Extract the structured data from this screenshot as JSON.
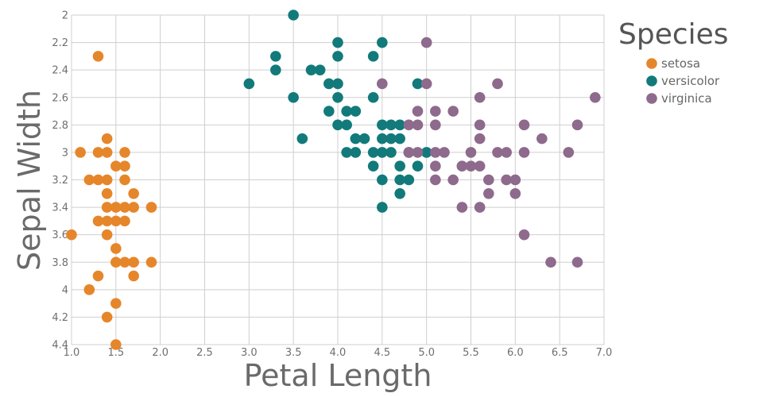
{
  "chart_data": {
    "type": "scatter",
    "xlabel": "Petal Length",
    "ylabel": "Sepal Width",
    "xlim": [
      1.0,
      7.0
    ],
    "ylim": [
      2.0,
      4.4
    ],
    "y_inverted": true,
    "grid": true,
    "x_ticks": [
      "1.0",
      "1.5",
      "2.0",
      "2.5",
      "3.0",
      "3.5",
      "4.0",
      "4.5",
      "5.0",
      "5.5",
      "6.0",
      "6.5",
      "7.0"
    ],
    "y_ticks": [
      "2",
      "2.2",
      "2.4",
      "2.6",
      "2.8",
      "3",
      "3.2",
      "3.4",
      "3.6",
      "3.8",
      "4",
      "4.2",
      "4.4"
    ],
    "legend": {
      "title": "Species",
      "position": "top-right"
    },
    "series": [
      {
        "name": "setosa",
        "color": "#e6862a",
        "points": [
          [
            1.3,
            2.3
          ],
          [
            1.1,
            3.0
          ],
          [
            1.3,
            3.0
          ],
          [
            1.4,
            3.0
          ],
          [
            1.6,
            3.0
          ],
          [
            1.4,
            2.9
          ],
          [
            1.5,
            3.1
          ],
          [
            1.6,
            3.1
          ],
          [
            1.2,
            3.2
          ],
          [
            1.3,
            3.2
          ],
          [
            1.4,
            3.2
          ],
          [
            1.6,
            3.2
          ],
          [
            1.4,
            3.3
          ],
          [
            1.7,
            3.3
          ],
          [
            1.4,
            3.4
          ],
          [
            1.5,
            3.4
          ],
          [
            1.6,
            3.4
          ],
          [
            1.7,
            3.4
          ],
          [
            1.9,
            3.4
          ],
          [
            1.3,
            3.5
          ],
          [
            1.4,
            3.5
          ],
          [
            1.5,
            3.5
          ],
          [
            1.6,
            3.5
          ],
          [
            1.0,
            3.6
          ],
          [
            1.4,
            3.6
          ],
          [
            1.5,
            3.7
          ],
          [
            1.5,
            3.8
          ],
          [
            1.6,
            3.8
          ],
          [
            1.7,
            3.8
          ],
          [
            1.9,
            3.8
          ],
          [
            1.3,
            3.9
          ],
          [
            1.7,
            3.9
          ],
          [
            1.2,
            4.0
          ],
          [
            1.5,
            4.1
          ],
          [
            1.4,
            4.2
          ],
          [
            1.5,
            4.4
          ]
        ]
      },
      {
        "name": "versicolor",
        "color": "#127a7a",
        "points": [
          [
            3.5,
            2.0
          ],
          [
            4.0,
            2.2
          ],
          [
            4.5,
            2.2
          ],
          [
            3.3,
            2.3
          ],
          [
            4.0,
            2.3
          ],
          [
            4.4,
            2.3
          ],
          [
            3.3,
            2.4
          ],
          [
            3.7,
            2.4
          ],
          [
            3.8,
            2.4
          ],
          [
            3.0,
            2.5
          ],
          [
            3.9,
            2.5
          ],
          [
            4.0,
            2.5
          ],
          [
            4.9,
            2.5
          ],
          [
            3.5,
            2.6
          ],
          [
            4.0,
            2.6
          ],
          [
            4.4,
            2.6
          ],
          [
            3.9,
            2.7
          ],
          [
            4.1,
            2.7
          ],
          [
            4.2,
            2.7
          ],
          [
            4.0,
            2.8
          ],
          [
            4.1,
            2.8
          ],
          [
            4.5,
            2.8
          ],
          [
            4.6,
            2.8
          ],
          [
            4.7,
            2.8
          ],
          [
            3.6,
            2.9
          ],
          [
            4.2,
            2.9
          ],
          [
            4.3,
            2.9
          ],
          [
            4.5,
            2.9
          ],
          [
            4.6,
            2.9
          ],
          [
            4.7,
            2.9
          ],
          [
            4.1,
            3.0
          ],
          [
            4.2,
            3.0
          ],
          [
            4.4,
            3.0
          ],
          [
            4.5,
            3.0
          ],
          [
            4.6,
            3.0
          ],
          [
            4.8,
            3.0
          ],
          [
            5.0,
            3.0
          ],
          [
            4.4,
            3.1
          ],
          [
            4.7,
            3.1
          ],
          [
            4.9,
            3.1
          ],
          [
            4.5,
            3.2
          ],
          [
            4.7,
            3.2
          ],
          [
            4.8,
            3.2
          ],
          [
            4.7,
            3.3
          ],
          [
            4.5,
            3.4
          ]
        ]
      },
      {
        "name": "virginica",
        "color": "#8e6a8c",
        "points": [
          [
            5.0,
            2.2
          ],
          [
            4.5,
            2.5
          ],
          [
            5.0,
            2.5
          ],
          [
            5.8,
            2.5
          ],
          [
            5.6,
            2.6
          ],
          [
            6.9,
            2.6
          ],
          [
            4.9,
            2.7
          ],
          [
            5.1,
            2.7
          ],
          [
            5.3,
            2.7
          ],
          [
            4.8,
            2.8
          ],
          [
            4.9,
            2.8
          ],
          [
            5.1,
            2.8
          ],
          [
            5.6,
            2.8
          ],
          [
            6.1,
            2.8
          ],
          [
            6.7,
            2.8
          ],
          [
            5.6,
            2.9
          ],
          [
            6.3,
            2.9
          ],
          [
            4.8,
            3.0
          ],
          [
            4.9,
            3.0
          ],
          [
            5.1,
            3.0
          ],
          [
            5.2,
            3.0
          ],
          [
            5.5,
            3.0
          ],
          [
            5.8,
            3.0
          ],
          [
            5.9,
            3.0
          ],
          [
            6.1,
            3.0
          ],
          [
            6.6,
            3.0
          ],
          [
            5.1,
            3.1
          ],
          [
            5.4,
            3.1
          ],
          [
            5.5,
            3.1
          ],
          [
            5.6,
            3.1
          ],
          [
            5.1,
            3.2
          ],
          [
            5.3,
            3.2
          ],
          [
            5.7,
            3.2
          ],
          [
            5.9,
            3.2
          ],
          [
            6.0,
            3.2
          ],
          [
            5.7,
            3.3
          ],
          [
            6.0,
            3.3
          ],
          [
            5.4,
            3.4
          ],
          [
            5.6,
            3.4
          ],
          [
            6.1,
            3.6
          ],
          [
            6.4,
            3.8
          ],
          [
            6.7,
            3.8
          ]
        ]
      }
    ]
  }
}
